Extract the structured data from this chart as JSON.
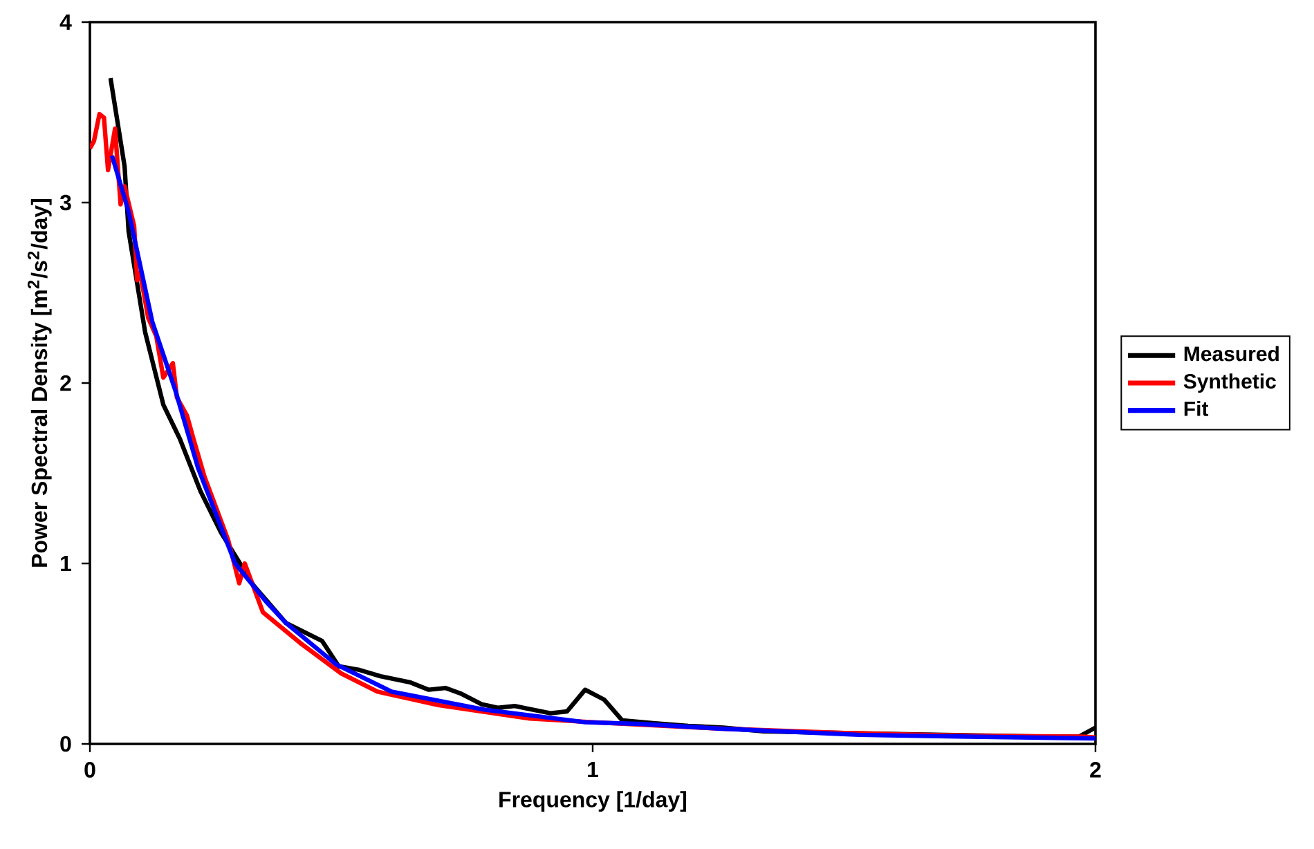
{
  "chart_data": {
    "type": "line",
    "xlabel": "Frequency [1/day]",
    "ylabel": "Power Spectral Density [m$^{2}$/s$^{2}$/day]",
    "xlim": [
      0,
      2
    ],
    "ylim": [
      0,
      4
    ],
    "xticks": [
      0,
      1,
      2
    ],
    "yticks": [
      0,
      1,
      2,
      3,
      4
    ],
    "grid": false,
    "legend": "right",
    "series": [
      {
        "name": "Measured",
        "color": "#000000",
        "x": [
          0.041,
          0.069,
          0.077,
          0.11,
          0.146,
          0.179,
          0.22,
          0.261,
          0.303,
          0.325,
          0.39,
          0.462,
          0.495,
          0.536,
          0.578,
          0.638,
          0.674,
          0.707,
          0.737,
          0.779,
          0.812,
          0.845,
          0.88,
          0.916,
          0.949,
          0.985,
          1.023,
          1.059,
          1.12,
          1.19,
          1.26,
          1.34,
          1.5,
          1.7,
          1.9,
          1.967,
          2.0
        ],
        "values": [
          3.69,
          3.2,
          2.84,
          2.28,
          1.88,
          1.69,
          1.4,
          1.17,
          0.98,
          0.88,
          0.67,
          0.57,
          0.43,
          0.41,
          0.375,
          0.34,
          0.3,
          0.31,
          0.28,
          0.22,
          0.2,
          0.21,
          0.19,
          0.17,
          0.18,
          0.3,
          0.245,
          0.13,
          0.115,
          0.1,
          0.09,
          0.07,
          0.06,
          0.05,
          0.04,
          0.04,
          0.09
        ]
      },
      {
        "name": "Synthetic",
        "color": "#ff0000",
        "x": [
          0.0,
          0.008,
          0.019,
          0.028,
          0.036,
          0.05,
          0.061,
          0.069,
          0.088,
          0.094,
          0.1,
          0.116,
          0.132,
          0.146,
          0.165,
          0.173,
          0.193,
          0.206,
          0.228,
          0.275,
          0.297,
          0.308,
          0.344,
          0.418,
          0.5,
          0.572,
          0.693,
          0.875,
          1.0,
          1.25,
          1.5,
          1.75,
          1.975,
          2.0
        ],
        "values": [
          3.3,
          3.34,
          3.49,
          3.47,
          3.18,
          3.41,
          2.99,
          3.09,
          2.87,
          2.57,
          2.61,
          2.36,
          2.26,
          2.03,
          2.11,
          1.92,
          1.82,
          1.69,
          1.48,
          1.13,
          0.89,
          1.0,
          0.73,
          0.56,
          0.39,
          0.29,
          0.215,
          0.14,
          0.12,
          0.085,
          0.06,
          0.045,
          0.04,
          0.035
        ]
      },
      {
        "name": "Fit",
        "color": "#0000ff",
        "x": [
          0.044,
          0.077,
          0.124,
          0.171,
          0.215,
          0.289,
          0.35,
          0.39,
          0.49,
          0.6,
          0.784,
          0.985,
          1.1,
          1.25,
          1.53,
          1.75,
          2.0
        ],
        "values": [
          3.26,
          2.95,
          2.34,
          1.95,
          1.53,
          1.0,
          0.79,
          0.67,
          0.44,
          0.29,
          0.19,
          0.12,
          0.11,
          0.085,
          0.05,
          0.04,
          0.03
        ]
      }
    ]
  }
}
